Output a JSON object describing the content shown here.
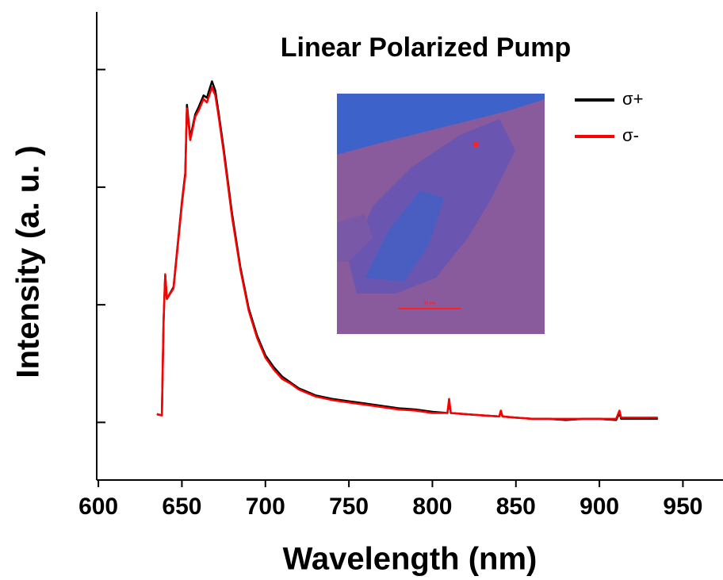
{
  "chart_data": {
    "type": "line",
    "title": "Linear Polarized Pump",
    "x_label": "Wavelength (nm)",
    "y_label": "Intensity (a. u. )",
    "inset_scale_label": "10 μm",
    "x": [
      635,
      638,
      639,
      640,
      641,
      645,
      650,
      652,
      653,
      655,
      658,
      660,
      663,
      665,
      668,
      670,
      672,
      675,
      680,
      685,
      690,
      695,
      700,
      705,
      710,
      715,
      720,
      730,
      740,
      750,
      760,
      770,
      780,
      790,
      800,
      809,
      810,
      811,
      820,
      830,
      840,
      841,
      842,
      850,
      860,
      870,
      880,
      890,
      900,
      910,
      912,
      913,
      920,
      935
    ],
    "series": [
      {
        "name": "σ+",
        "color": "#000000",
        "values": [
          0.07,
          0.06,
          0.85,
          1.25,
          1.05,
          1.15,
          1.87,
          2.12,
          2.7,
          2.42,
          2.62,
          2.68,
          2.78,
          2.76,
          2.9,
          2.82,
          2.63,
          2.33,
          1.78,
          1.32,
          0.97,
          0.74,
          0.57,
          0.47,
          0.39,
          0.34,
          0.29,
          0.23,
          0.2,
          0.18,
          0.16,
          0.14,
          0.12,
          0.11,
          0.09,
          0.08,
          0.18,
          0.08,
          0.07,
          0.06,
          0.05,
          0.09,
          0.05,
          0.04,
          0.03,
          0.03,
          0.02,
          0.03,
          0.03,
          0.02,
          0.08,
          0.03,
          0.03,
          0.03
        ]
      },
      {
        "name": "σ-",
        "color": "#ff0000",
        "values": [
          0.07,
          0.06,
          0.86,
          1.26,
          1.05,
          1.14,
          1.85,
          2.1,
          2.67,
          2.4,
          2.6,
          2.65,
          2.75,
          2.72,
          2.85,
          2.78,
          2.6,
          2.3,
          1.75,
          1.3,
          0.95,
          0.72,
          0.55,
          0.45,
          0.37,
          0.33,
          0.28,
          0.22,
          0.19,
          0.17,
          0.15,
          0.13,
          0.11,
          0.1,
          0.08,
          0.08,
          0.2,
          0.08,
          0.07,
          0.06,
          0.05,
          0.1,
          0.05,
          0.04,
          0.03,
          0.03,
          0.03,
          0.03,
          0.03,
          0.03,
          0.1,
          0.04,
          0.04,
          0.04
        ]
      }
    ],
    "xlim": [
      599,
      974
    ],
    "xticks": [
      600,
      650,
      700,
      750,
      800,
      850,
      900,
      950
    ],
    "ylim": [
      -0.49,
      3.49
    ],
    "yticks": [
      0,
      1,
      2,
      3
    ]
  }
}
